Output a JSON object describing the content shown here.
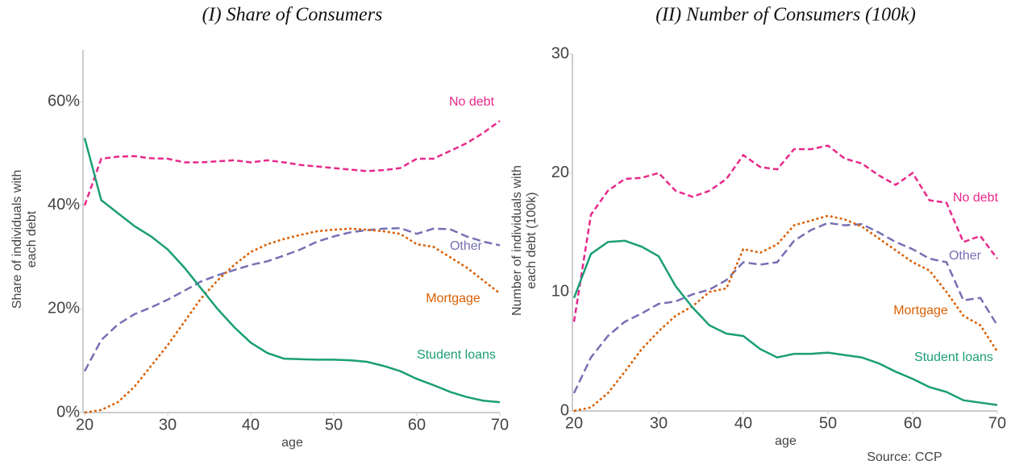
{
  "chart_data": [
    {
      "type": "line",
      "title": "(I) Share of Consumers",
      "xlabel": "age",
      "ylabel": [
        "Share of individuals with",
        "each debt"
      ],
      "x": [
        20,
        22,
        24,
        26,
        28,
        30,
        32,
        34,
        36,
        38,
        40,
        42,
        44,
        46,
        48,
        50,
        52,
        54,
        56,
        58,
        60,
        62,
        64,
        66,
        68,
        70
      ],
      "xlim": [
        20,
        70
      ],
      "xticks": [
        20,
        30,
        40,
        50,
        60,
        70
      ],
      "ylim": [
        0,
        70
      ],
      "yticks": [
        {
          "value": 0,
          "label": "0%"
        },
        {
          "value": 20,
          "label": "20%"
        },
        {
          "value": 40,
          "label": "40%"
        },
        {
          "value": 60,
          "label": "60%"
        }
      ],
      "grid": false,
      "series": [
        {
          "name": "No debt",
          "color": "#e7298a",
          "values": [
            40,
            49,
            49.4,
            49.5,
            49.1,
            49,
            48.3,
            48.3,
            48.5,
            48.7,
            48.3,
            48.7,
            48.3,
            47.8,
            47.5,
            47.2,
            46.9,
            46.6,
            46.8,
            47.2,
            49,
            49,
            50.5,
            52,
            54,
            56.3
          ]
        },
        {
          "name": "Other",
          "color": "#7570b3",
          "values": [
            8,
            14,
            17,
            19,
            20.3,
            21.8,
            23.5,
            25.3,
            26.5,
            27.5,
            28.5,
            29.2,
            30.3,
            31.5,
            33,
            34,
            34.8,
            35.2,
            35.5,
            35.6,
            34.5,
            35.5,
            35.4,
            34,
            33,
            32.3
          ]
        },
        {
          "name": "Mortgage",
          "color": "#d95f02",
          "values": [
            0,
            0.5,
            2,
            5,
            9,
            13,
            17.5,
            22,
            25.5,
            28.5,
            31,
            32.5,
            33.5,
            34.3,
            35,
            35.3,
            35.5,
            35.3,
            35,
            34.5,
            32.5,
            32,
            30,
            28,
            25.5,
            23
          ]
        },
        {
          "name": "Student loans",
          "color": "#1b9e77",
          "values": [
            53,
            41,
            38.5,
            36,
            34,
            31.5,
            28,
            24,
            20,
            16.5,
            13.5,
            11.5,
            10.4,
            10.3,
            10.2,
            10.2,
            10.1,
            9.8,
            9,
            8,
            6.5,
            5.3,
            4,
            3,
            2.3,
            2
          ]
        }
      ]
    },
    {
      "type": "line",
      "title": "(II) Number of Consumers (100k)",
      "xlabel": "age",
      "ylabel": [
        "Number of individuals with",
        "each debt (100k)"
      ],
      "x": [
        20,
        22,
        24,
        26,
        28,
        30,
        32,
        34,
        36,
        38,
        40,
        42,
        44,
        46,
        48,
        50,
        52,
        54,
        56,
        58,
        60,
        62,
        64,
        66,
        68,
        70
      ],
      "xlim": [
        20,
        70
      ],
      "xticks": [
        20,
        30,
        40,
        50,
        60,
        70
      ],
      "ylim": [
        0,
        30
      ],
      "yticks": [
        0,
        10,
        20,
        30
      ],
      "grid": false,
      "series": [
        {
          "name": "No debt",
          "color": "#e7298a",
          "values": [
            7.5,
            16.5,
            18.5,
            19.5,
            19.6,
            20,
            18.5,
            18,
            18.5,
            19.5,
            21.5,
            20.5,
            20.3,
            22,
            22,
            22.3,
            21.2,
            20.8,
            19.8,
            19,
            20,
            17.7,
            17.5,
            14.2,
            14.7,
            12.8
          ]
        },
        {
          "name": "Other",
          "color": "#7570b3",
          "values": [
            1.5,
            4.5,
            6.3,
            7.5,
            8.2,
            9,
            9.2,
            9.8,
            10.2,
            11,
            12.5,
            12.3,
            12.5,
            14.3,
            15.2,
            15.8,
            15.6,
            15.7,
            15,
            14.2,
            13.6,
            12.8,
            12.5,
            9.3,
            9.5,
            7.2
          ]
        },
        {
          "name": "Mortgage",
          "color": "#d95f02",
          "values": [
            0,
            0.3,
            1.5,
            3.3,
            5.2,
            6.7,
            8,
            8.8,
            10,
            10.3,
            13.6,
            13.3,
            14,
            15.6,
            16,
            16.4,
            16.1,
            15.5,
            14.5,
            13.5,
            12.5,
            11.8,
            10,
            8,
            7.2,
            5
          ]
        },
        {
          "name": "Student loans",
          "color": "#1b9e77",
          "values": [
            9.5,
            13.2,
            14.2,
            14.3,
            13.8,
            13,
            10.5,
            8.7,
            7.2,
            6.5,
            6.3,
            5.2,
            4.5,
            4.8,
            4.8,
            4.9,
            4.7,
            4.5,
            4,
            3.3,
            2.7,
            2,
            1.6,
            0.9,
            0.7,
            0.5
          ]
        }
      ]
    }
  ],
  "source": "Source: CCP"
}
